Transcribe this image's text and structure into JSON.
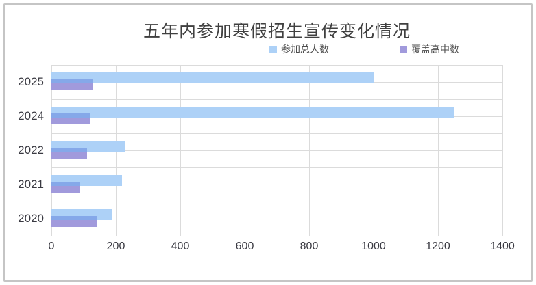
{
  "title": "五年内参加寒假招生宣传变化情况",
  "legend": {
    "items": [
      {
        "label": "参加总人数",
        "color": "#add1f7"
      },
      {
        "label": "覆盖高中数",
        "color": "#a19adc"
      }
    ]
  },
  "chart_data": {
    "type": "bar",
    "orientation": "horizontal",
    "title": "五年内参加寒假招生宣传变化情况",
    "categories": [
      "2025",
      "2024",
      "2022",
      "2021",
      "2020"
    ],
    "series": [
      {
        "name": "参加总人数",
        "color": "#add1f7",
        "values": [
          1000,
          1250,
          230,
          220,
          190
        ]
      },
      {
        "name": "覆盖高中数",
        "color": "#a19adc",
        "values": [
          130,
          120,
          110,
          90,
          140
        ]
      }
    ],
    "overlap_color": "#85a8e9",
    "xlim": [
      0,
      1400
    ],
    "xticks": [
      0,
      200,
      400,
      600,
      800,
      1000,
      1200,
      1400
    ],
    "grid": "on",
    "grid_color": "#dbdbdb",
    "legend_position": "top-center"
  }
}
